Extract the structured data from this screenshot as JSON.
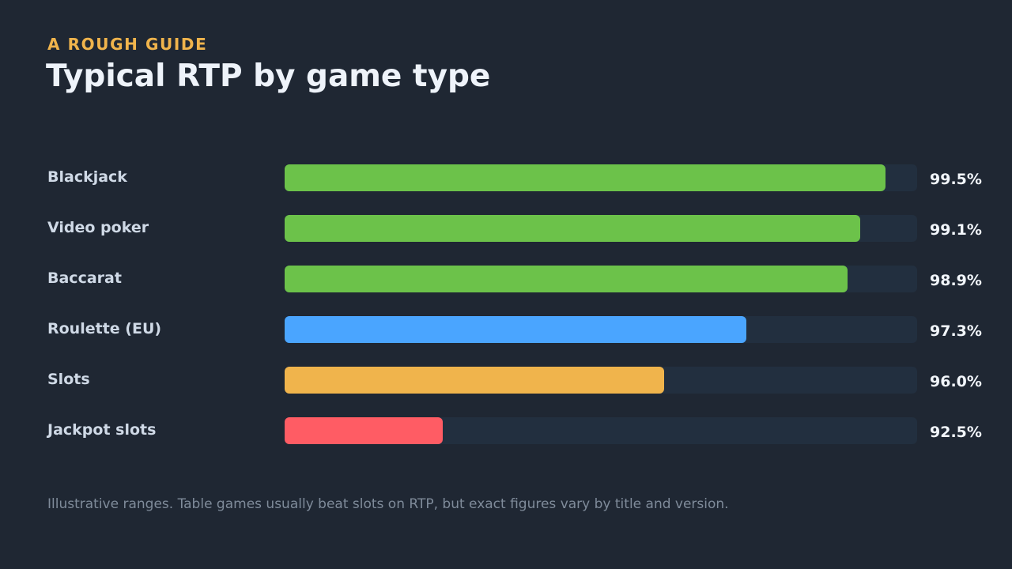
{
  "header": {
    "eyebrow": "A ROUGH GUIDE",
    "title": "Typical RTP by game type"
  },
  "chart_data": {
    "type": "bar",
    "orientation": "horizontal",
    "title": "Typical RTP by game type",
    "categories": [
      "Blackjack",
      "Video poker",
      "Baccarat",
      "Roulette (EU)",
      "Slots",
      "Jackpot slots"
    ],
    "values": [
      99.5,
      99.1,
      98.9,
      97.3,
      96.0,
      92.5
    ],
    "value_labels": [
      "99.5%",
      "99.1%",
      "98.9%",
      "97.3%",
      "96.0%",
      "92.5%"
    ],
    "colors": [
      "#6cc24a",
      "#6cc24a",
      "#6cc24a",
      "#4aa5ff",
      "#f0b44c",
      "#ff5c64"
    ],
    "track_color": "#222f3f",
    "xlim": [
      90,
      100
    ],
    "xlabel": "",
    "ylabel": "",
    "grid": false,
    "legend": "none"
  },
  "footnote": "Illustrative ranges. Table games usually beat slots on RTP, but exact figures vary by title and version."
}
